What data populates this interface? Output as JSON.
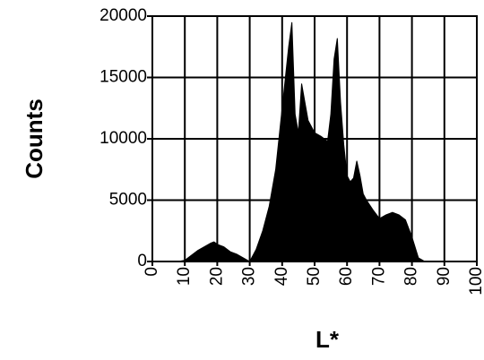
{
  "chart_data": {
    "type": "area",
    "x_label": "L*",
    "y_label": "Counts",
    "x": [
      0,
      8,
      10,
      12,
      14,
      16,
      18,
      19,
      20,
      22,
      24,
      26,
      28,
      30,
      32,
      34,
      36,
      38,
      40,
      41,
      42,
      43,
      44,
      45,
      46,
      47,
      48,
      50,
      52,
      54,
      55,
      56,
      57,
      58,
      59,
      60,
      61,
      62,
      63,
      64,
      65,
      66,
      68,
      70,
      72,
      74,
      76,
      78,
      80,
      82,
      84,
      100
    ],
    "values": [
      0,
      0,
      100,
      500,
      900,
      1200,
      1500,
      1600,
      1400,
      1200,
      800,
      600,
      300,
      0,
      1000,
      2500,
      4500,
      7500,
      12500,
      15000,
      17500,
      19500,
      12000,
      10500,
      14500,
      13000,
      11500,
      10500,
      10200,
      9800,
      12000,
      16500,
      18200,
      13000,
      9500,
      7000,
      6500,
      6800,
      8200,
      7000,
      5500,
      5000,
      4200,
      3500,
      3800,
      4000,
      3800,
      3400,
      2000,
      300,
      0,
      0
    ],
    "color": "#000000",
    "xlim": [
      0,
      100
    ],
    "xticks": [
      0,
      10,
      20,
      30,
      40,
      50,
      60,
      70,
      80,
      90,
      100
    ],
    "ylim": [
      0,
      20000
    ],
    "yticks": [
      0,
      5000,
      10000,
      15000,
      20000
    ],
    "grid": true
  }
}
